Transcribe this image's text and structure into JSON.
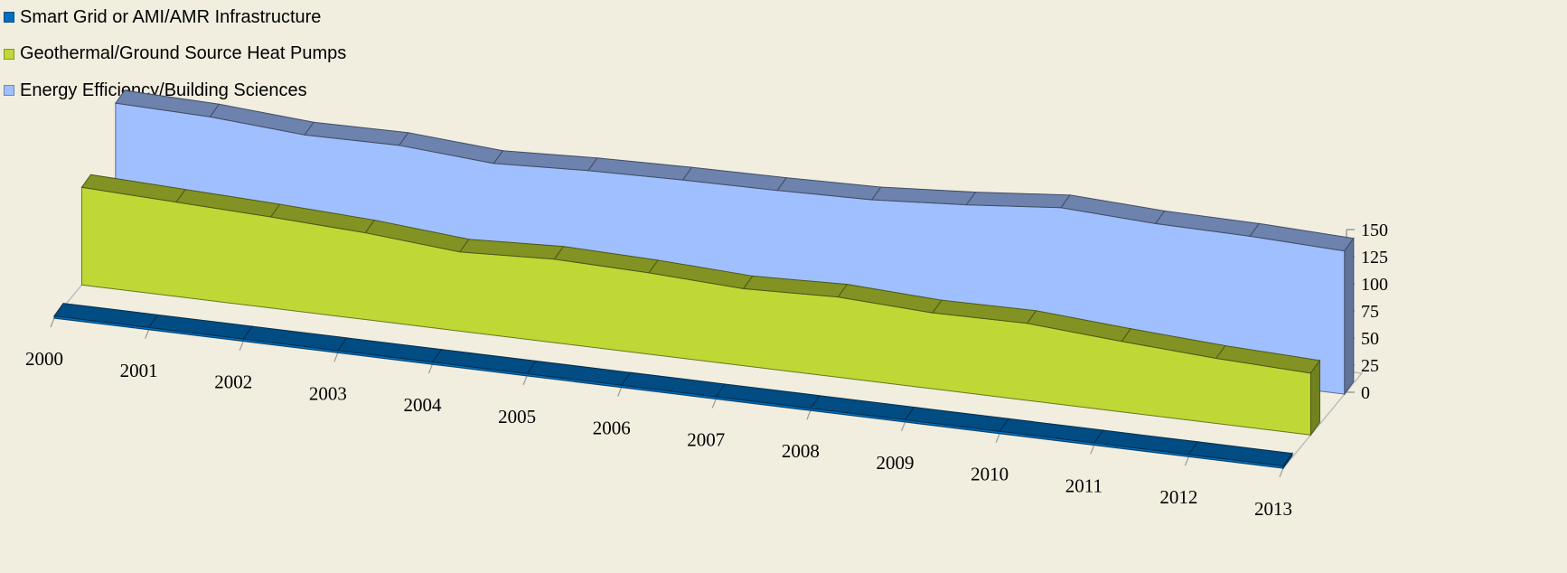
{
  "chart_data": {
    "type": "area",
    "title": "",
    "xlabel": "",
    "ylabel": "",
    "categories": [
      "2000",
      "2001",
      "2002",
      "2003",
      "2004",
      "2005",
      "2006",
      "2007",
      "2008",
      "2009",
      "2010",
      "2011",
      "2012",
      "2013"
    ],
    "ylim": [
      0,
      150
    ],
    "yticks": [
      0,
      25,
      50,
      75,
      100,
      125,
      150
    ],
    "ytick_labels": [
      "0",
      "25",
      "50",
      "75",
      "100",
      "125",
      "150"
    ],
    "grid": false,
    "three_d": true,
    "legend_position": "top-left",
    "series": [
      {
        "name": "Smart Grid or AMI/AMR Infrastructure",
        "color": "#0070c0",
        "values": [
          2,
          2,
          2,
          2,
          2,
          2,
          2,
          2,
          2,
          2,
          2,
          2,
          2,
          2
        ]
      },
      {
        "name": "Geothermal/Ground Source Heat Pumps",
        "color": "#bfd835",
        "values": [
          90,
          87,
          84,
          80,
          73,
          77,
          75,
          71,
          74,
          70,
          71,
          65,
          60,
          57
        ]
      },
      {
        "name": "Energy Efficiency/Building Sciences",
        "color": "#a0bfff",
        "values": [
          130,
          128,
          122,
          123,
          117,
          121,
          123,
          124,
          126,
          132,
          140,
          136,
          135,
          132
        ]
      }
    ]
  }
}
